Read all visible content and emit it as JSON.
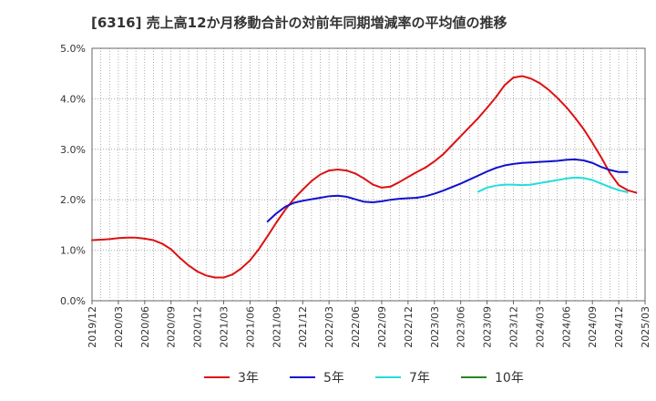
{
  "chart_data": {
    "type": "line",
    "title": "[6316]  売上高12か月移動合計の対前年同期増減率の平均値の推移",
    "xlabel": "",
    "ylabel": "",
    "ylim": [
      0,
      5
    ],
    "y_ticks": [
      "0.0%",
      "1.0%",
      "2.0%",
      "3.0%",
      "4.0%",
      "5.0%"
    ],
    "x_ticks": [
      "2019/12",
      "2020/03",
      "2020/06",
      "2020/09",
      "2020/12",
      "2021/03",
      "2021/06",
      "2021/09",
      "2021/12",
      "2022/03",
      "2022/06",
      "2022/09",
      "2022/12",
      "2023/03",
      "2023/06",
      "2023/09",
      "2023/12",
      "2024/03",
      "2024/06",
      "2024/09",
      "2024/12",
      "2025/03"
    ],
    "x_start": "2019/12",
    "grid": true,
    "legend_position": "bottom",
    "series": [
      {
        "name": "3年",
        "color": "#dd1111",
        "start": "2019/12",
        "values": [
          1.2,
          1.21,
          1.22,
          1.24,
          1.25,
          1.25,
          1.23,
          1.2,
          1.13,
          1.02,
          0.85,
          0.7,
          0.58,
          0.5,
          0.46,
          0.46,
          0.52,
          0.64,
          0.8,
          1.02,
          1.28,
          1.55,
          1.8,
          2.02,
          2.2,
          2.37,
          2.5,
          2.58,
          2.6,
          2.58,
          2.52,
          2.42,
          2.3,
          2.24,
          2.26,
          2.35,
          2.45,
          2.55,
          2.64,
          2.76,
          2.9,
          3.08,
          3.26,
          3.44,
          3.62,
          3.82,
          4.03,
          4.27,
          4.42,
          4.45,
          4.4,
          4.31,
          4.18,
          4.02,
          3.84,
          3.63,
          3.4,
          3.13,
          2.84,
          2.53,
          2.29,
          2.19,
          2.14
        ]
      },
      {
        "name": "5年",
        "color": "#1111cc",
        "start": "2021/08",
        "values": [
          1.57,
          1.73,
          1.86,
          1.94,
          1.98,
          2.01,
          2.04,
          2.07,
          2.08,
          2.06,
          2.01,
          1.96,
          1.95,
          1.97,
          2.0,
          2.02,
          2.03,
          2.04,
          2.07,
          2.12,
          2.18,
          2.25,
          2.32,
          2.4,
          2.48,
          2.56,
          2.63,
          2.68,
          2.71,
          2.73,
          2.74,
          2.75,
          2.76,
          2.77,
          2.79,
          2.8,
          2.78,
          2.73,
          2.65,
          2.59,
          2.55,
          2.55
        ]
      },
      {
        "name": "7年",
        "color": "#22dddd",
        "start": "2023/08",
        "values": [
          2.16,
          2.24,
          2.28,
          2.3,
          2.3,
          2.29,
          2.3,
          2.33,
          2.36,
          2.39,
          2.42,
          2.44,
          2.43,
          2.39,
          2.32,
          2.25,
          2.19,
          2.15
        ]
      },
      {
        "name": "10年",
        "color": "#228822",
        "start": "2025/03",
        "values": []
      }
    ]
  }
}
